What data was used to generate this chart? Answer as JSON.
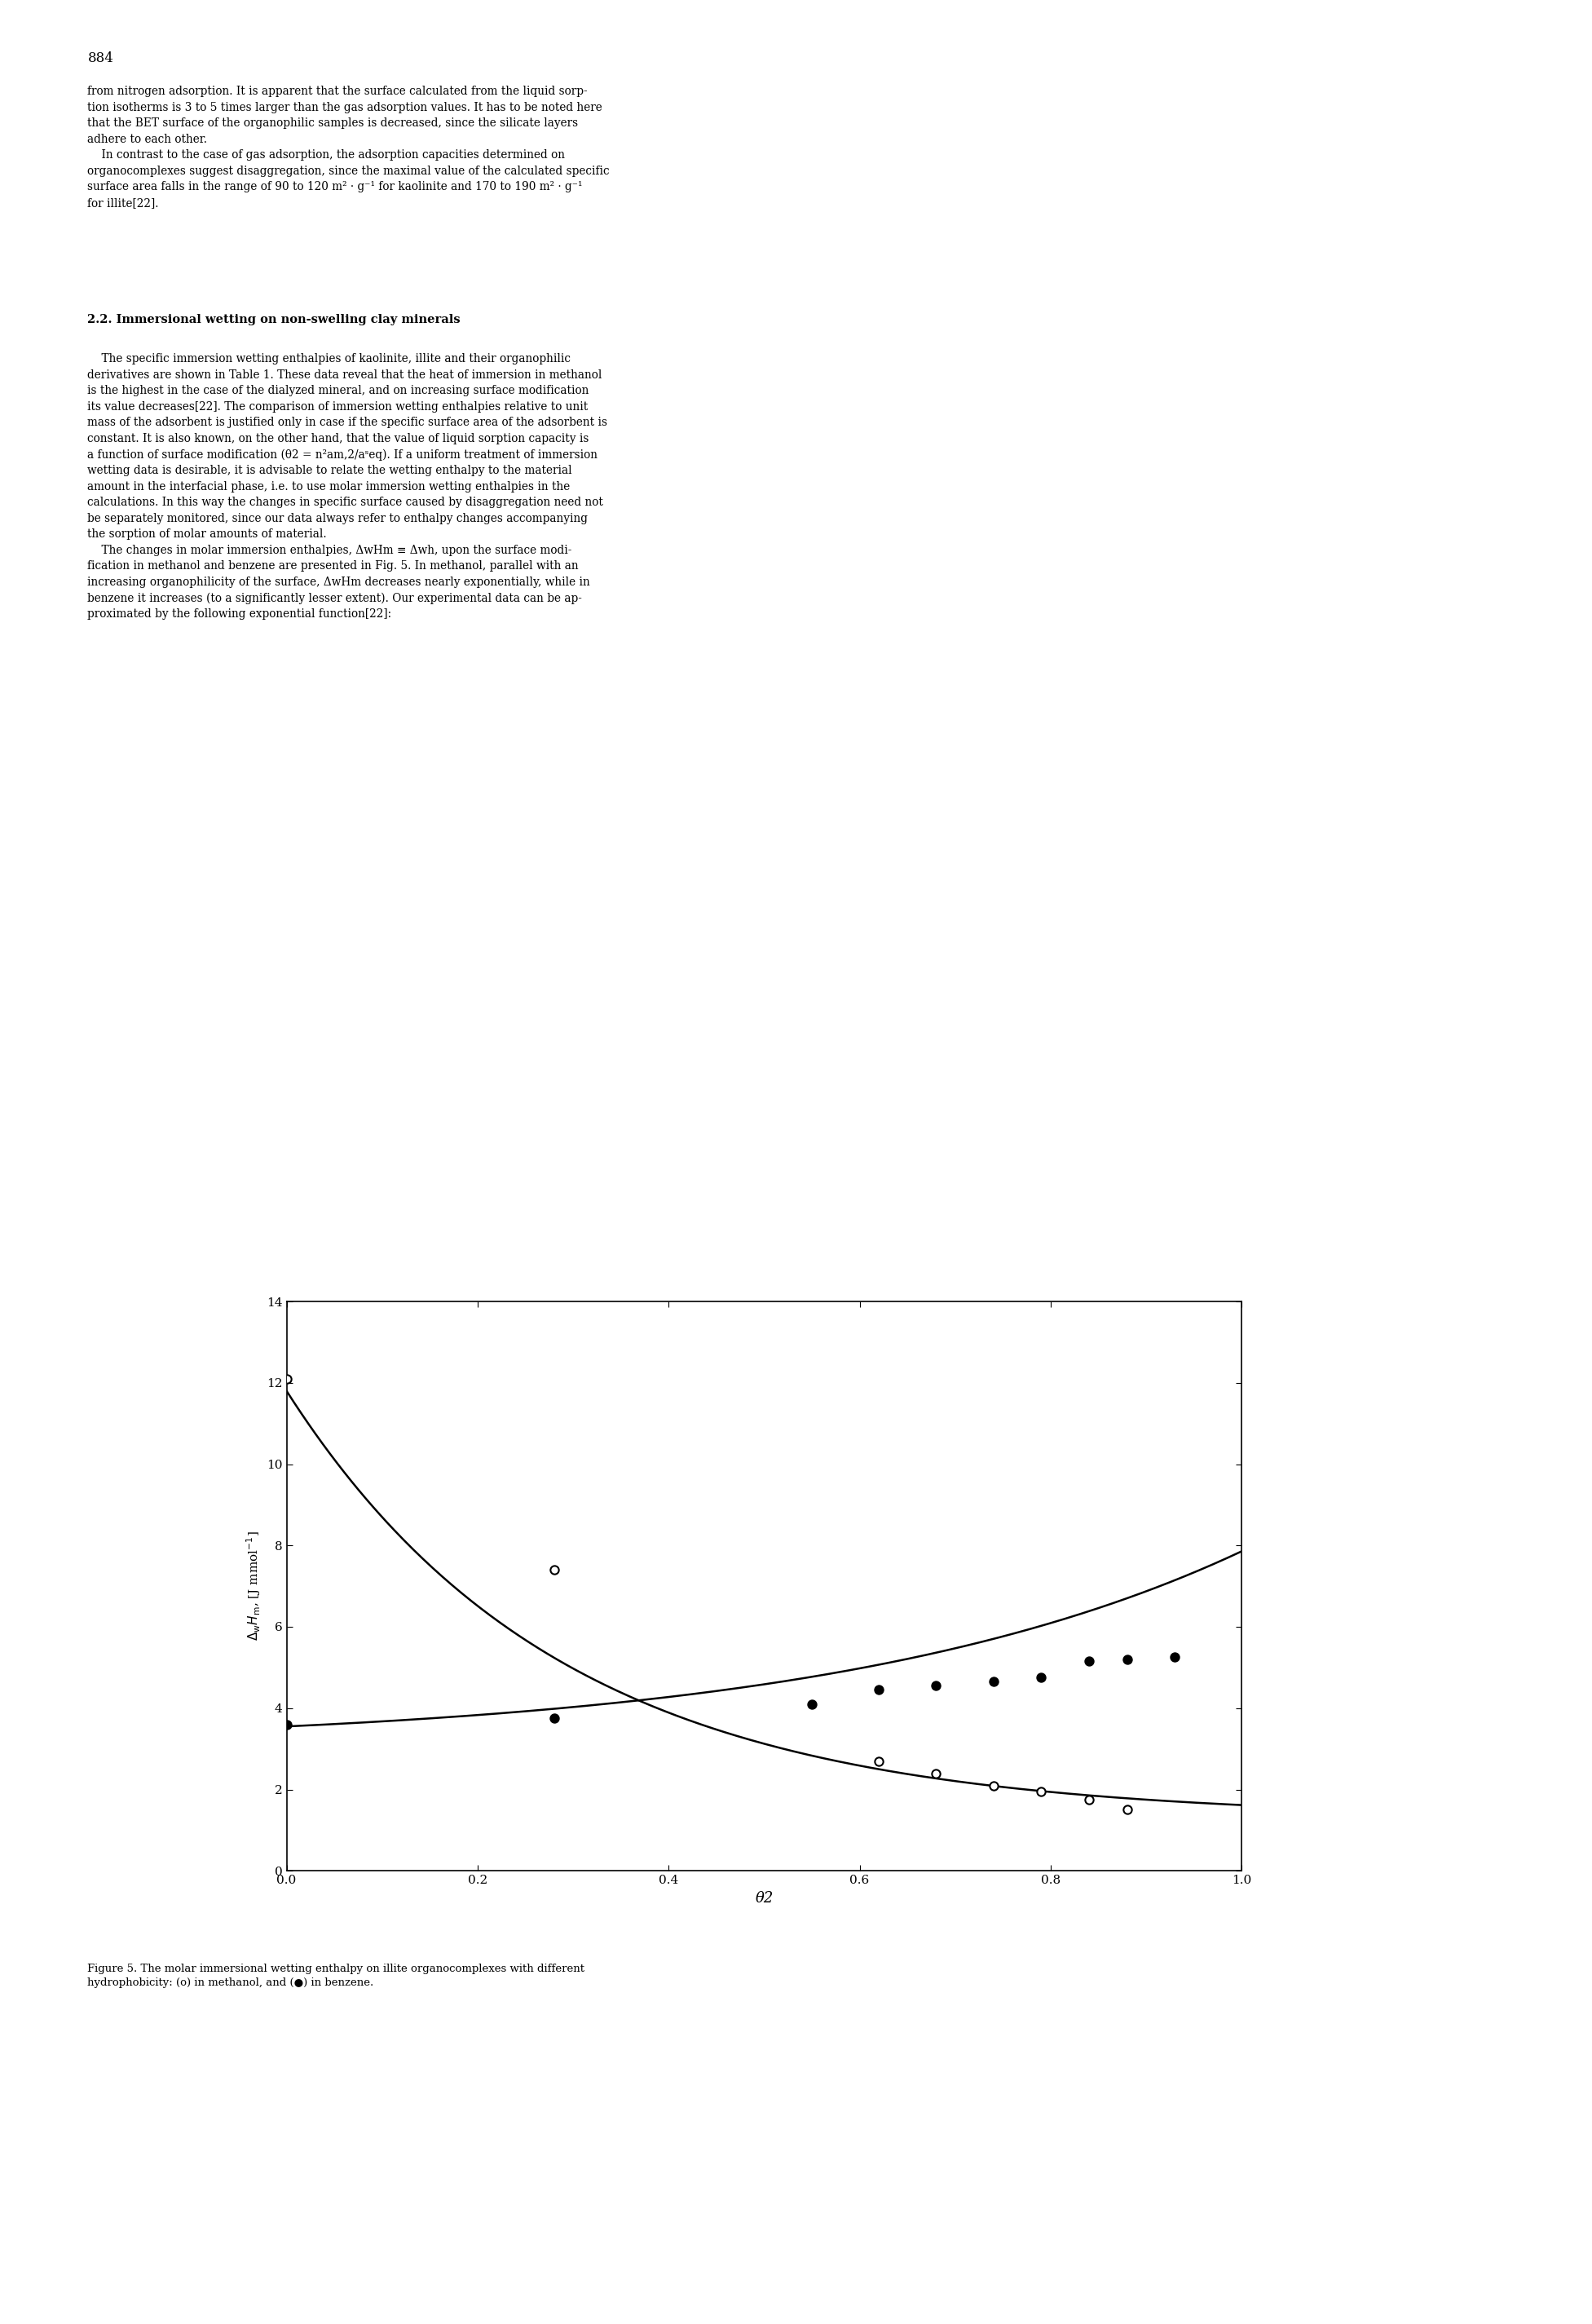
{
  "methanol_scatter_x": [
    0.0,
    0.28,
    0.62,
    0.68,
    0.74,
    0.79,
    0.84,
    0.88
  ],
  "methanol_scatter_y": [
    12.1,
    7.4,
    2.7,
    2.4,
    2.1,
    1.95,
    1.75,
    1.5
  ],
  "benzene_scatter_x": [
    0.0,
    0.28,
    0.55,
    0.62,
    0.68,
    0.74,
    0.79,
    0.84,
    0.88,
    0.93
  ],
  "benzene_scatter_y": [
    3.6,
    3.75,
    4.1,
    4.45,
    4.55,
    4.65,
    4.75,
    5.15,
    5.2,
    5.25
  ],
  "xlim": [
    0.0,
    1.0
  ],
  "ylim": [
    0,
    14
  ],
  "xticks": [
    0.0,
    0.2,
    0.4,
    0.6,
    0.8,
    1.0
  ],
  "yticks": [
    0,
    2,
    4,
    6,
    8,
    10,
    12,
    14
  ],
  "xlabel": "θ2",
  "figure_width": 19.53,
  "figure_height": 28.5,
  "plot_bg": "#ffffff",
  "line_color": "#000000",
  "marker_size": 55,
  "line_width": 1.8,
  "methanol_A": 10.5,
  "methanol_k": 3.5,
  "methanol_C": 1.3,
  "benzene_C": 3.55,
  "benzene_A": 0.48,
  "benzene_k": 2.3,
  "page_number": "884",
  "caption_line1": "Figure 5. The molar immersional wetting enthalpy on illite organocomplexes with different",
  "caption_line2": "hydrophobicity: (o) in methanol, and (●) in benzene.",
  "body_text_top": "from nitrogen adsorption. It is apparent that the surface calculated from the liquid sorp-\ntion isotherms is 3 to 5 times larger than the gas adsorption values. It has to be noted here\nthat the BET surface of the organophilic samples is decreased, since the silicate layers\nadhere to each other.\n    In contrast to the case of gas adsorption, the adsorption capacities determined on\norganocomplexes suggest disaggregation, since the maximal value of the calculated specific\nsurface area falls in the range of 90 to 120 m² · g⁻¹ for kaolinite and 170 to 190 m² · g⁻¹\nfor illite[22].",
  "section_title": "2.2. Immersional wetting on non-swelling clay minerals",
  "body_text_mid": "    The specific immersion wetting enthalpies of kaolinite, illite and their organophilic\nderivatives are shown in Table 1. These data reveal that the heat of immersion in methanol\nis the highest in the case of the dialyzed mineral, and on increasing surface modification\nits value decreases[22]. The comparison of immersion wetting enthalpies relative to unit\nmass of the adsorbent is justified only in case if the specific surface area of the adsorbent is\nconstant. It is also known, on the other hand, that the value of liquid sorption capacity is\na function of surface modification (θ2 = n²am,2/aˢeq). If a uniform treatment of immersion\nwetting data is desirable, it is advisable to relate the wetting enthalpy to the material\namount in the interfacial phase, i.e. to use molar immersion wetting enthalpies in the\ncalculations. In this way the changes in specific surface caused by disaggregation need not\nbe separately monitored, since our data always refer to enthalpy changes accompanying\nthe sorption of molar amounts of material.\n    The changes in molar immersion enthalpies, ΔwHm ≡ Δwh, upon the surface modi-\nfication in methanol and benzene are presented in Fig. 5. In methanol, parallel with an\nincreasing organophilicity of the surface, ΔwHm decreases nearly exponentially, while in\nbenzene it increases (to a significantly lesser extent). Our experimental data can be ap-\nproximated by the following exponential function[22]:"
}
